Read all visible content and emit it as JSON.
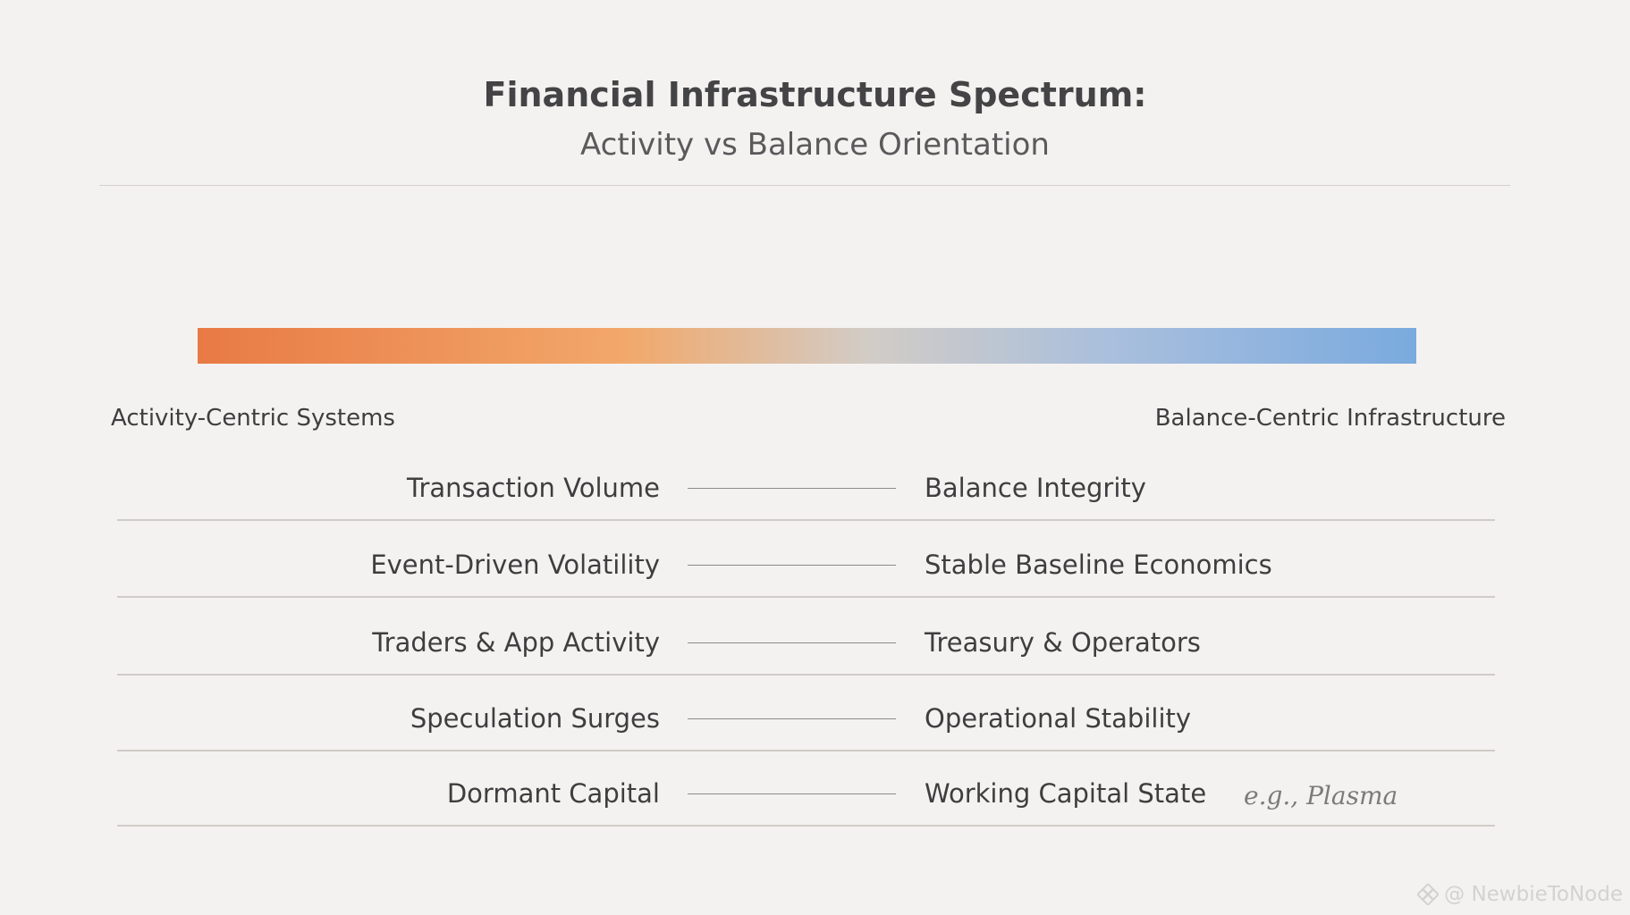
{
  "title": "Financial Infrastructure Spectrum:",
  "subtitle": "Activity vs Balance Orientation",
  "spectrum": {
    "left_label": "Activity-Centric Systems",
    "right_label": "Balance-Centric Infrastructure",
    "colors": [
      "#e87a45",
      "#f2a86a",
      "#d2ccc6",
      "#a9bfdd",
      "#7aaade"
    ]
  },
  "rows": [
    {
      "left": "Transaction Volume",
      "right": "Balance Integrity",
      "note": ""
    },
    {
      "left": "Event-Driven Volatility",
      "right": "Stable Baseline Economics",
      "note": ""
    },
    {
      "left": "Traders & App Activity",
      "right": "Treasury & Operators",
      "note": ""
    },
    {
      "left": "Speculation Surges",
      "right": "Operational Stability",
      "note": ""
    },
    {
      "left": "Dormant Capital",
      "right": "Working Capital State",
      "note": "e.g., Plasma"
    }
  ],
  "watermark": {
    "text": "@ NewbieToNode",
    "icon": "binance-diamond-icon"
  }
}
